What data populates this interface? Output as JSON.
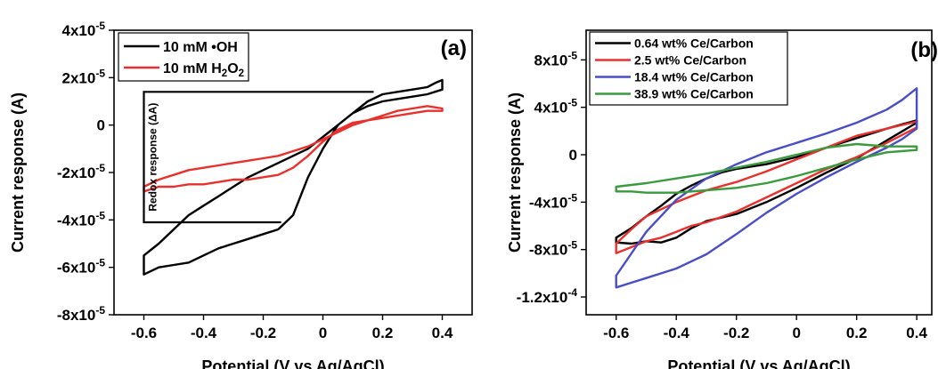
{
  "chart_data": [
    {
      "type": "line",
      "panel_label": "(a)",
      "xlabel": "Potential (V vs Ag/AgCl)",
      "ylabel": "Current response (A)",
      "xlim": [
        -0.7,
        0.5
      ],
      "ylim": [
        -8e-05,
        4e-05
      ],
      "x_ticks": [
        -0.6,
        -0.4,
        -0.2,
        0,
        0.2,
        0.4
      ],
      "x_tick_labels": [
        "-0.6",
        "-0.4",
        "-0.2",
        "0",
        "0.2",
        "0.4"
      ],
      "y_ticks": [
        -8e-05,
        -6e-05,
        -4e-05,
        -2e-05,
        0,
        2e-05,
        4e-05
      ],
      "y_tick_labels": [
        "-8x10",
        "-6x10",
        "-4x10",
        "-2x10",
        "0",
        "2x10",
        "4x10"
      ],
      "y_tick_exponents": [
        "-5",
        "-5",
        "-5",
        "-5",
        "",
        "-5",
        "-5"
      ],
      "legend_position": "top-left",
      "grid": false,
      "series": [
        {
          "name": "10 mM •OH",
          "color": "#000000",
          "x": [
            -0.6,
            -0.55,
            -0.5,
            -0.45,
            -0.4,
            -0.35,
            -0.3,
            -0.25,
            -0.2,
            -0.15,
            -0.1,
            -0.05,
            0,
            0.05,
            0.1,
            0.15,
            0.2,
            0.25,
            0.3,
            0.35,
            0.4,
            0.4,
            0.38,
            0.35,
            0.3,
            0.25,
            0.2,
            0.15,
            0.1,
            0.05,
            0,
            -0.05,
            -0.1,
            -0.15,
            -0.2,
            -0.25,
            -0.3,
            -0.35,
            -0.4,
            -0.45,
            -0.5,
            -0.55,
            -0.6
          ],
          "y": [
            -6.3e-05,
            -6e-05,
            -5.9e-05,
            -5.8e-05,
            -5.5e-05,
            -5.2e-05,
            -5e-05,
            -4.8e-05,
            -4.6e-05,
            -4.4e-05,
            -3.8e-05,
            -2.2e-05,
            -1e-05,
            0.0,
            5e-06,
            8e-06,
            1e-05,
            1.1e-05,
            1.2e-05,
            1.3e-05,
            1.5e-05,
            1.9e-05,
            1.8e-05,
            1.6e-05,
            1.5e-05,
            1.4e-05,
            1.3e-05,
            1e-05,
            5e-06,
            0.0,
            -5e-06,
            -1e-05,
            -1.3e-05,
            -1.6e-05,
            -1.9e-05,
            -2.2e-05,
            -2.6e-05,
            -3e-05,
            -3.4e-05,
            -3.8e-05,
            -4.4e-05,
            -5e-05,
            -5.5e-05
          ]
        },
        {
          "name": "10 mM H2O2",
          "color": "#e8312d",
          "x": [
            -0.6,
            -0.55,
            -0.5,
            -0.45,
            -0.4,
            -0.35,
            -0.3,
            -0.25,
            -0.2,
            -0.15,
            -0.1,
            -0.05,
            0,
            0.05,
            0.1,
            0.15,
            0.2,
            0.25,
            0.3,
            0.35,
            0.4,
            0.4,
            0.35,
            0.3,
            0.25,
            0.2,
            0.15,
            0.1,
            0.05,
            0,
            -0.05,
            -0.1,
            -0.15,
            -0.2,
            -0.25,
            -0.3,
            -0.35,
            -0.4,
            -0.45,
            -0.5,
            -0.55,
            -0.6
          ],
          "y": [
            -2.8e-05,
            -2.6e-05,
            -2.6e-05,
            -2.5e-05,
            -2.5e-05,
            -2.4e-05,
            -2.3e-05,
            -2.3e-05,
            -2.2e-05,
            -2.1e-05,
            -1.8e-05,
            -1.3e-05,
            -7e-06,
            -2e-06,
            1e-06,
            2e-06,
            3e-06,
            4e-06,
            5e-06,
            6e-06,
            6e-06,
            7e-06,
            8e-06,
            7e-06,
            6e-06,
            4e-06,
            2e-06,
            0.0,
            -3e-06,
            -6e-06,
            -9e-06,
            -1.1e-05,
            -1.3e-05,
            -1.4e-05,
            -1.5e-05,
            -1.6e-05,
            -1.7e-05,
            -1.8e-05,
            -1.9e-05,
            -2.1e-05,
            -2.3e-05,
            -2.6e-05
          ]
        }
      ],
      "annotation": {
        "text": "Redox response (ΔA)",
        "bracket_top": 1.4e-05,
        "bracket_bottom": -4.1e-05,
        "x_left": -0.6,
        "x_top_right": 0.17,
        "x_bottom_right": -0.14
      }
    },
    {
      "type": "line",
      "panel_label": "(b)",
      "xlabel": "Potential (V vs Ag/AgCl)",
      "ylabel": "Current response (A)",
      "xlim": [
        -0.7,
        0.45
      ],
      "ylim": [
        -0.000135,
        0.000105
      ],
      "x_ticks": [
        -0.6,
        -0.4,
        -0.2,
        0,
        0.2,
        0.4
      ],
      "x_tick_labels": [
        "-0.6",
        "-0.4",
        "-0.2",
        "0",
        "0.2",
        "0.4"
      ],
      "y_ticks": [
        -0.00012,
        -8e-05,
        -4e-05,
        0,
        4e-05,
        8e-05
      ],
      "y_tick_labels": [
        "-1.2x10",
        "-8x10",
        "-4x10",
        "0",
        "4x10",
        "8x10"
      ],
      "y_tick_exponents": [
        "-4",
        "-5",
        "-5",
        "",
        "-5",
        "-5"
      ],
      "legend_position": "top-left",
      "grid": false,
      "series": [
        {
          "name": "0.64 wt% Ce/Carbon",
          "color": "#000000",
          "x": [
            -0.6,
            -0.55,
            -0.5,
            -0.45,
            -0.4,
            -0.35,
            -0.3,
            -0.25,
            -0.2,
            -0.1,
            0,
            0.1,
            0.2,
            0.3,
            0.4,
            0.4,
            0.3,
            0.2,
            0.1,
            0,
            -0.1,
            -0.2,
            -0.25,
            -0.3,
            -0.35,
            -0.4,
            -0.45,
            -0.5,
            -0.55,
            -0.6
          ],
          "y": [
            -7.4e-05,
            -7.5e-05,
            -7.3e-05,
            -7.4e-05,
            -7e-05,
            -6.2e-05,
            -5.6e-05,
            -5.3e-05,
            -5e-05,
            -4e-05,
            -2.8e-05,
            -1.5e-05,
            -3e-06,
            1.2e-05,
            2.7e-05,
            2.9e-05,
            2.2e-05,
            1.4e-05,
            6e-06,
            -2e-06,
            -8e-06,
            -1.2e-05,
            -1.5e-05,
            -2e-05,
            -2.6e-05,
            -3.3e-05,
            -4.3e-05,
            -5.2e-05,
            -6.2e-05,
            -7e-05
          ]
        },
        {
          "name": "2.5 wt% Ce/Carbon",
          "color": "#e8312d",
          "x": [
            -0.6,
            -0.55,
            -0.5,
            -0.45,
            -0.4,
            -0.35,
            -0.3,
            -0.2,
            -0.1,
            0,
            0.1,
            0.2,
            0.3,
            0.4,
            0.4,
            0.3,
            0.2,
            0.1,
            0,
            -0.1,
            -0.2,
            -0.3,
            -0.4,
            -0.5,
            -0.55,
            -0.6
          ],
          "y": [
            -8.3e-05,
            -7.8e-05,
            -7.3e-05,
            -7e-05,
            -6.5e-05,
            -6e-05,
            -5.7e-05,
            -4.8e-05,
            -3.6e-05,
            -2.4e-05,
            -1.2e-05,
            -2e-06,
            1e-05,
            2.3e-05,
            2.8e-05,
            2.2e-05,
            1.6e-05,
            6e-06,
            -4e-06,
            -1.4e-05,
            -2.3e-05,
            -3e-05,
            -4e-05,
            -5.2e-05,
            -6.3e-05,
            -7.5e-05
          ]
        },
        {
          "name": "18.4 wt% Ce/Carbon",
          "color": "#4a4ec4",
          "x": [
            -0.6,
            -0.55,
            -0.5,
            -0.4,
            -0.3,
            -0.2,
            -0.1,
            0,
            0.1,
            0.2,
            0.3,
            0.35,
            0.4,
            0.4,
            0.35,
            0.3,
            0.2,
            0.1,
            0,
            -0.1,
            -0.2,
            -0.3,
            -0.4,
            -0.5,
            -0.6
          ],
          "y": [
            -0.000112,
            -0.000108,
            -0.000104,
            -9.6e-05,
            -8.4e-05,
            -6.7e-05,
            -4.9e-05,
            -3.3e-05,
            -1.9e-05,
            -6e-06,
            6e-06,
            1.3e-05,
            2.2e-05,
            5.6e-05,
            4.6e-05,
            3.8e-05,
            2.7e-05,
            1.8e-05,
            1e-05,
            2e-06,
            -8e-06,
            -2e-05,
            -3.8e-05,
            -6.5e-05,
            -0.000102
          ]
        },
        {
          "name": "38.9 wt% Ce/Carbon",
          "color": "#3a9a3e",
          "x": [
            -0.6,
            -0.55,
            -0.5,
            -0.4,
            -0.3,
            -0.2,
            -0.1,
            0,
            0.1,
            0.2,
            0.3,
            0.4,
            0.4,
            0.3,
            0.2,
            0.1,
            0,
            -0.1,
            -0.2,
            -0.3,
            -0.4,
            -0.5,
            -0.6
          ],
          "y": [
            -3.1e-05,
            -3.1e-05,
            -3.2e-05,
            -3.2e-05,
            -3e-05,
            -2.8e-05,
            -2.4e-05,
            -1.8e-05,
            -1.1e-05,
            -4e-06,
            2e-06,
            4e-06,
            7e-06,
            7e-06,
            9e-06,
            6e-06,
            0.0,
            -6e-06,
            -1.1e-05,
            -1.6e-05,
            -2e-05,
            -2.4e-05,
            -2.7e-05
          ]
        }
      ]
    }
  ]
}
